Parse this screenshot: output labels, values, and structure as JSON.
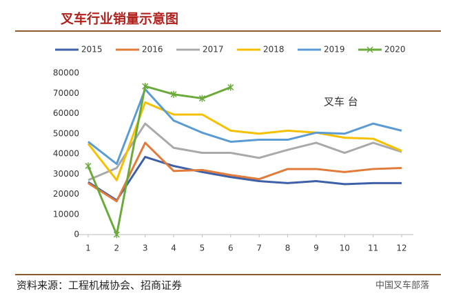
{
  "chart_data": {
    "type": "line",
    "title": "叉车行业销量示意图",
    "annotation": "叉车 台",
    "source": "资料来源：工程机械协会、招商证券",
    "watermark": "中国叉车部落",
    "categories": [
      "1",
      "2",
      "3",
      "4",
      "5",
      "6",
      "7",
      "8",
      "9",
      "10",
      "11",
      "12"
    ],
    "ylim": [
      0,
      80000
    ],
    "yticks": [
      0,
      10000,
      20000,
      30000,
      40000,
      50000,
      60000,
      70000,
      80000
    ],
    "grid": false,
    "series": [
      {
        "name": "2015",
        "color": "#3e60a8",
        "values": [
          26000,
          17000,
          38500,
          34000,
          31000,
          28500,
          26500,
          25500,
          26500,
          25000,
          25500,
          25500
        ]
      },
      {
        "name": "2016",
        "color": "#e07b39",
        "values": [
          25500,
          16500,
          45500,
          31500,
          32000,
          29500,
          27500,
          32500,
          32500,
          31000,
          32500,
          33000
        ]
      },
      {
        "name": "2017",
        "color": "#a9a9a9",
        "values": [
          27000,
          33000,
          55000,
          43000,
          40500,
          40500,
          38000,
          42000,
          45500,
          40500,
          45500,
          41000
        ]
      },
      {
        "name": "2018",
        "color": "#f5c000",
        "values": [
          45000,
          27000,
          65500,
          59500,
          59500,
          51500,
          50000,
          51500,
          50500,
          48000,
          47500,
          41500
        ]
      },
      {
        "name": "2019",
        "color": "#5a9bd5",
        "values": [
          46000,
          35000,
          72000,
          56500,
          50500,
          46000,
          47000,
          47000,
          50500,
          50000,
          55000,
          51500
        ]
      },
      {
        "name": "2020",
        "color": "#6aaa3a",
        "marker": "x",
        "values": [
          34000,
          0,
          73500,
          69500,
          67500,
          73000,
          null,
          null,
          null,
          null,
          null,
          null
        ]
      }
    ]
  }
}
